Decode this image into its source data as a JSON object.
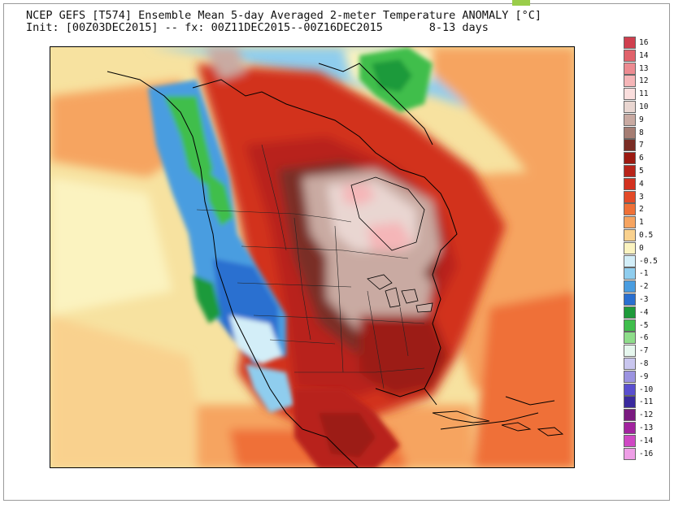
{
  "header": {
    "title_line1": "NCEP GEFS [T574] Ensemble Mean 5-day Averaged 2-meter Temperature ANOMALY [°C]",
    "title_line2": "Init: [00Z03DEC2015] -- fx: 00Z11DEC2015--00Z16DEC2015       8-13 days"
  },
  "colorbar": {
    "unit": "°C",
    "entries": [
      {
        "label": "16",
        "color": "#cf3f4e"
      },
      {
        "label": "14",
        "color": "#e0626b"
      },
      {
        "label": "13",
        "color": "#ec8b91"
      },
      {
        "label": "12",
        "color": "#f5b6b8"
      },
      {
        "label": "11",
        "color": "#fadedd"
      },
      {
        "label": "10",
        "color": "#e9d6d1"
      },
      {
        "label": "9",
        "color": "#c9aaa2"
      },
      {
        "label": "8",
        "color": "#a57d73"
      },
      {
        "label": "7",
        "color": "#7a2d25"
      },
      {
        "label": "6",
        "color": "#9c1a12"
      },
      {
        "label": "5",
        "color": "#b8241a"
      },
      {
        "label": "4",
        "color": "#d2311f"
      },
      {
        "label": "3",
        "color": "#e34a28"
      },
      {
        "label": "2",
        "color": "#ef7037"
      },
      {
        "label": "1",
        "color": "#f6a460"
      },
      {
        "label": "0.5",
        "color": "#f9d18e"
      },
      {
        "label": "0",
        "color": "#fbf3c0"
      },
      {
        "label": "-0.5",
        "color": "#d3eef8"
      },
      {
        "label": "-1",
        "color": "#8fcdee"
      },
      {
        "label": "-2",
        "color": "#4a9de0"
      },
      {
        "label": "-3",
        "color": "#2a6fd0"
      },
      {
        "label": "-4",
        "color": "#1e9a3a"
      },
      {
        "label": "-5",
        "color": "#3fbe4c"
      },
      {
        "label": "-6",
        "color": "#8edd8a"
      },
      {
        "label": "-7",
        "color": "#e6f7ee"
      },
      {
        "label": "-8",
        "color": "#c9c6ef"
      },
      {
        "label": "-9",
        "color": "#9b93e0"
      },
      {
        "label": "-10",
        "color": "#5a4fcf"
      },
      {
        "label": "-11",
        "color": "#3a2a9e"
      },
      {
        "label": "-12",
        "color": "#7a1a80"
      },
      {
        "label": "-13",
        "color": "#a1239e"
      },
      {
        "label": "-14",
        "color": "#cf48c4"
      },
      {
        "label": "-16",
        "color": "#ee9ee6"
      }
    ]
  },
  "map": {
    "region": "North America",
    "ocean_background_color": "#f7e2a0"
  }
}
